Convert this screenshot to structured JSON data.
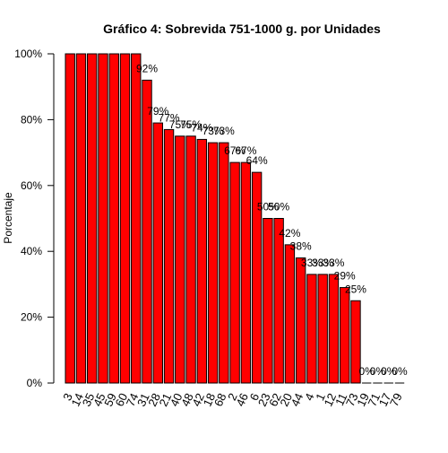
{
  "chart_data": {
    "type": "bar",
    "title": "Gráfico 4: Sobrevida 751-1000 g. por Unidades",
    "xlabel": "",
    "ylabel": "Porcentaje",
    "ylim": [
      0,
      100
    ],
    "yticks": [
      "0%",
      "20%",
      "40%",
      "60%",
      "80%",
      "100%"
    ],
    "ytick_values": [
      0,
      20,
      40,
      60,
      80,
      100
    ],
    "bar_color": "#ff0000",
    "bar_edge_color": "#000000",
    "categories": [
      "3",
      "14",
      "35",
      "45",
      "59",
      "60",
      "74",
      "31",
      "28",
      "21",
      "40",
      "48",
      "42",
      "18",
      "68",
      "2",
      "46",
      "6",
      "23",
      "62",
      "20",
      "44",
      "4",
      "1",
      "12",
      "11",
      "73",
      "19",
      "71",
      "17",
      "79"
    ],
    "values": [
      100,
      100,
      100,
      100,
      100,
      100,
      100,
      92,
      79,
      77,
      75,
      75,
      74,
      73,
      73,
      67,
      67,
      64,
      50,
      50,
      42,
      38,
      33,
      33,
      33,
      29,
      25,
      0,
      0,
      0,
      0
    ],
    "data_labels": [
      "",
      "",
      "",
      "",
      "",
      "",
      "",
      "92%",
      "79%",
      "77%",
      "75%",
      "75%",
      "74%",
      "73%",
      "73%",
      "67%",
      "67%",
      "64%",
      "50%",
      "50%",
      "42%",
      "38%",
      "33%",
      "33%",
      "33%",
      "29%",
      "25%",
      "0%",
      "0%",
      "0%",
      "0%"
    ],
    "grid": false,
    "legend": "none"
  }
}
